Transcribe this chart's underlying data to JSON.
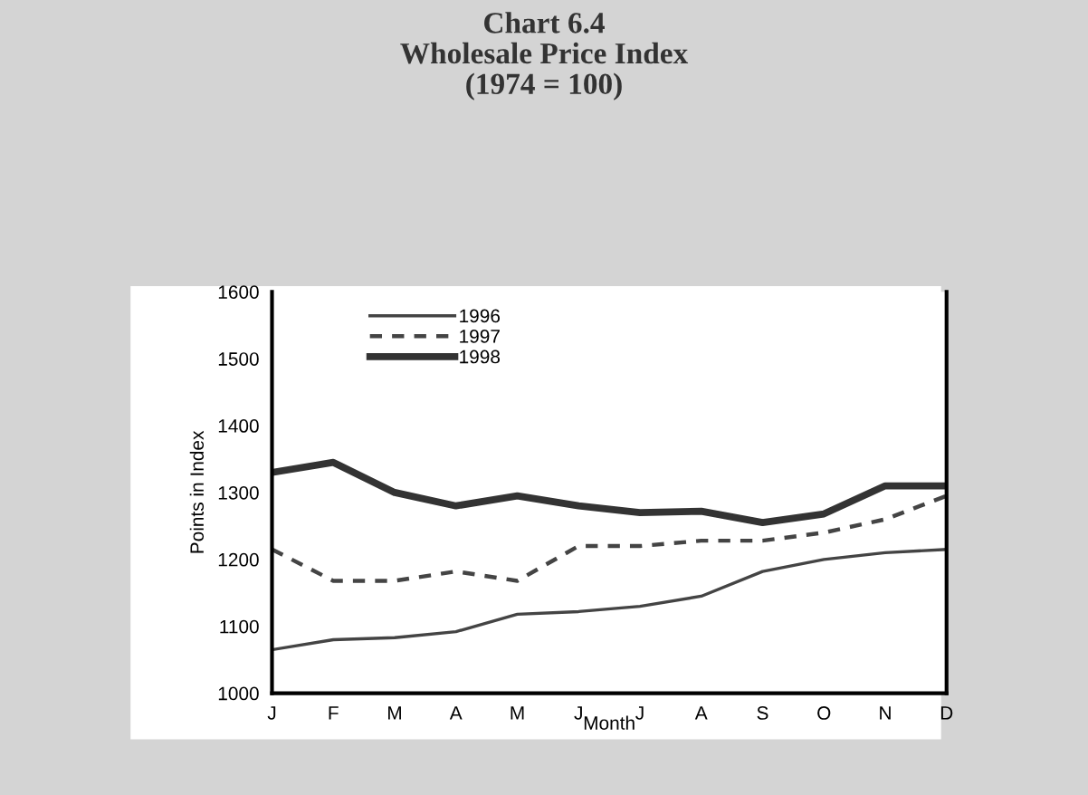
{
  "chart_data": {
    "type": "line",
    "title": "Chart 6.4\nWholesale Price Index\n(1974 = 100)",
    "xlabel": "Month",
    "ylabel": "Points in Index",
    "categories": [
      "J",
      "F",
      "M",
      "A",
      "M",
      "J",
      "J",
      "A",
      "S",
      "O",
      "N",
      "D"
    ],
    "series": [
      {
        "name": "1996",
        "color": "#444444",
        "line_style": "solid",
        "values": [
          1065,
          1080,
          1083,
          1092,
          1118,
          1122,
          1130,
          1145,
          1182,
          1200,
          1210,
          1215
        ]
      },
      {
        "name": "1997",
        "color": "#444444",
        "line_style": "dashed",
        "values": [
          1215,
          1168,
          1168,
          1182,
          1168,
          1220,
          1220,
          1228,
          1228,
          1240,
          1260,
          1295
        ]
      },
      {
        "name": "1998",
        "color": "#333333",
        "line_style": "solid",
        "values": [
          1330,
          1345,
          1300,
          1280,
          1295,
          1280,
          1270,
          1272,
          1255,
          1268,
          1310,
          1310
        ]
      }
    ],
    "ylim": [
      1000,
      1600
    ],
    "yticks": [
      1000,
      1100,
      1200,
      1300,
      1400,
      1500,
      1600
    ],
    "grid": false,
    "legend": "top left",
    "marker": "none"
  }
}
